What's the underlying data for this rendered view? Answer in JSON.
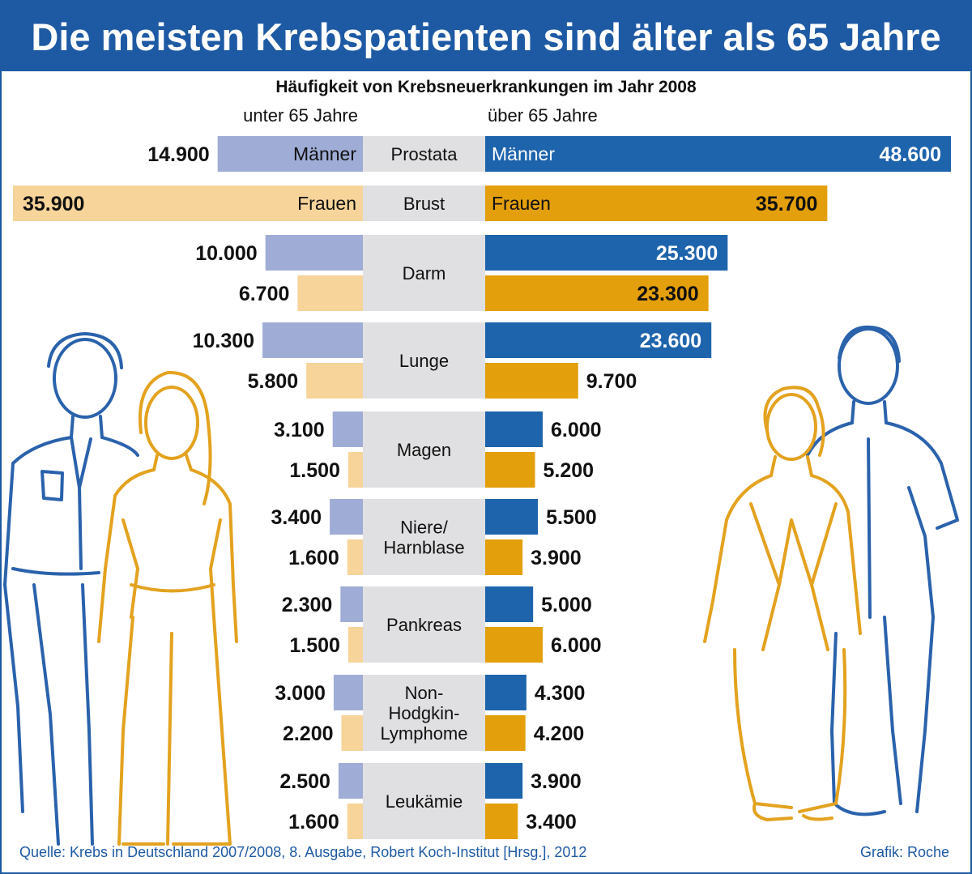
{
  "title": "Die meisten Krebspatienten sind älter als 65 Jahre",
  "source": "Quelle: Krebs in Deutschland 2007/2008, 8. Ausgabe, Robert Koch-Institut [Hrsg.], 2012",
  "credit": "Grafik: Roche",
  "colors": {
    "title_band": "#1e5aa4",
    "men_under": "#9fadd6",
    "women_under": "#f6d49a",
    "men_over": "#1e64ac",
    "women_over": "#e39f0c",
    "center_band": "#e0e0e2",
    "figure_blue": "#2a62ac",
    "figure_gold": "#e3a21f"
  },
  "chart_data": {
    "type": "bar",
    "subtitle": "Häufigkeit von Krebsneuerkrankungen im Jahr 2008",
    "left_header": "unter 65 Jahre",
    "right_header": "über 65 Jahre",
    "men_label": "Männer",
    "women_label": "Frauen",
    "groups": [
      {
        "label": [
          "Prostata"
        ],
        "rows": [
          {
            "sex": "men",
            "under65": 14900,
            "under65_label": "14.900",
            "over65": 48600,
            "over65_label": "48.600",
            "show_sex_label": true
          }
        ]
      },
      {
        "label": [
          "Brust"
        ],
        "rows": [
          {
            "sex": "women",
            "under65": 35900,
            "under65_label": "35.900",
            "over65": 35700,
            "over65_label": "35.700",
            "show_sex_label": true
          }
        ]
      },
      {
        "label": [
          "Darm"
        ],
        "rows": [
          {
            "sex": "men",
            "under65": 10000,
            "under65_label": "10.000",
            "over65": 25300,
            "over65_label": "25.300"
          },
          {
            "sex": "women",
            "under65": 6700,
            "under65_label": "6.700",
            "over65": 23300,
            "over65_label": "23.300"
          }
        ]
      },
      {
        "label": [
          "Lunge"
        ],
        "rows": [
          {
            "sex": "men",
            "under65": 10300,
            "under65_label": "10.300",
            "over65": 23600,
            "over65_label": "23.600"
          },
          {
            "sex": "women",
            "under65": 5800,
            "under65_label": "5.800",
            "over65": 9700,
            "over65_label": "9.700"
          }
        ]
      },
      {
        "label": [
          "Magen"
        ],
        "rows": [
          {
            "sex": "men",
            "under65": 3100,
            "under65_label": "3.100",
            "over65": 6000,
            "over65_label": "6.000"
          },
          {
            "sex": "women",
            "under65": 1500,
            "under65_label": "1.500",
            "over65": 5200,
            "over65_label": "5.200"
          }
        ]
      },
      {
        "label": [
          "Niere/",
          "Harnblase"
        ],
        "rows": [
          {
            "sex": "men",
            "under65": 3400,
            "under65_label": "3.400",
            "over65": 5500,
            "over65_label": "5.500"
          },
          {
            "sex": "women",
            "under65": 1600,
            "under65_label": "1.600",
            "over65": 3900,
            "over65_label": "3.900"
          }
        ]
      },
      {
        "label": [
          "Pankreas"
        ],
        "rows": [
          {
            "sex": "men",
            "under65": 2300,
            "under65_label": "2.300",
            "over65": 5000,
            "over65_label": "5.000"
          },
          {
            "sex": "women",
            "under65": 1500,
            "under65_label": "1.500",
            "over65": 6000,
            "over65_label": "6.000"
          }
        ]
      },
      {
        "label": [
          "Non-",
          "Hodgkin-",
          "Lymphome"
        ],
        "rows": [
          {
            "sex": "men",
            "under65": 3000,
            "under65_label": "3.000",
            "over65": 4300,
            "over65_label": "4.300"
          },
          {
            "sex": "women",
            "under65": 2200,
            "under65_label": "2.200",
            "over65": 4200,
            "over65_label": "4.200"
          }
        ]
      },
      {
        "label": [
          "Leukämie"
        ],
        "rows": [
          {
            "sex": "men",
            "under65": 2500,
            "under65_label": "2.500",
            "over65": 3900,
            "over65_label": "3.900"
          },
          {
            "sex": "women",
            "under65": 1600,
            "under65_label": "1.600",
            "over65": 3400,
            "over65_label": "3.400"
          }
        ]
      }
    ]
  }
}
